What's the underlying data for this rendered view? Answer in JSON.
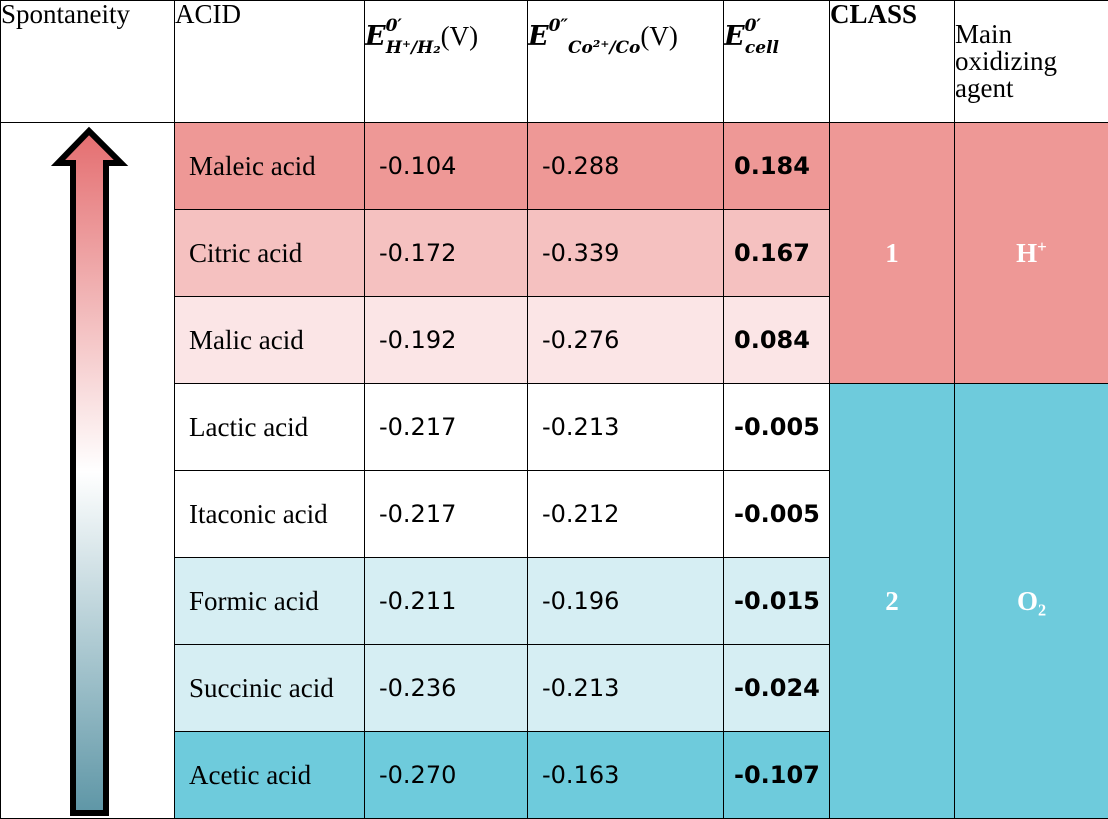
{
  "header": {
    "spontaneity": "Spontaneity",
    "acid": "ACID",
    "e_h": {
      "sym": "E",
      "sup": "0′",
      "sub": "H⁺/H₂",
      "unit": "(V)"
    },
    "e_co": {
      "sym": "E",
      "sup": "0″",
      "sub": "Co²⁺/Co",
      "unit": "(V)"
    },
    "e_cell": {
      "sym": "E",
      "sup": "0′",
      "sub": "cell"
    },
    "class": "CLASS",
    "agent_line1": "Main",
    "agent_line2": "oxidizing",
    "agent_line3": "agent"
  },
  "rows": [
    {
      "acid": "Maleic acid",
      "eh": "-0.104",
      "eco": "-0.288",
      "ecell": "0.184",
      "color": "#ee9896"
    },
    {
      "acid": "Citric acid",
      "eh": "-0.172",
      "eco": "-0.339",
      "ecell": "0.167",
      "color": "#f5c1c0"
    },
    {
      "acid": "Malic acid",
      "eh": "-0.192",
      "eco": "-0.276",
      "ecell": "0.084",
      "color": "#fbe5e6"
    },
    {
      "acid": "Lactic acid",
      "eh": "-0.217",
      "eco": "-0.213",
      "ecell": "-0.005",
      "color": "#ffffff"
    },
    {
      "acid": "Itaconic acid",
      "eh": "-0.217",
      "eco": "-0.212",
      "ecell": "-0.005",
      "color": "#ffffff"
    },
    {
      "acid": "Formic acid",
      "eh": "-0.211",
      "eco": "-0.196",
      "ecell": "-0.015",
      "color": "#d6eef3"
    },
    {
      "acid": "Succinic acid",
      "eh": "-0.236",
      "eco": "-0.213",
      "ecell": "-0.024",
      "color": "#d6eef3"
    },
    {
      "acid": "Acetic acid",
      "eh": "-0.270",
      "eco": "-0.163",
      "ecell": "-0.107",
      "color": "#6ecbdc"
    }
  ],
  "classes": [
    {
      "label": "1",
      "agent": "H",
      "agent_sup": "+",
      "color": "#ee9896"
    },
    {
      "label": "2",
      "agent": "O₂",
      "color": "#6ecbdc"
    }
  ],
  "arrow": {
    "top_color": "#e46d6f",
    "mid_color": "#ffffff",
    "bottom_color": "#5e96a6",
    "icon": "up-arrow-icon"
  }
}
